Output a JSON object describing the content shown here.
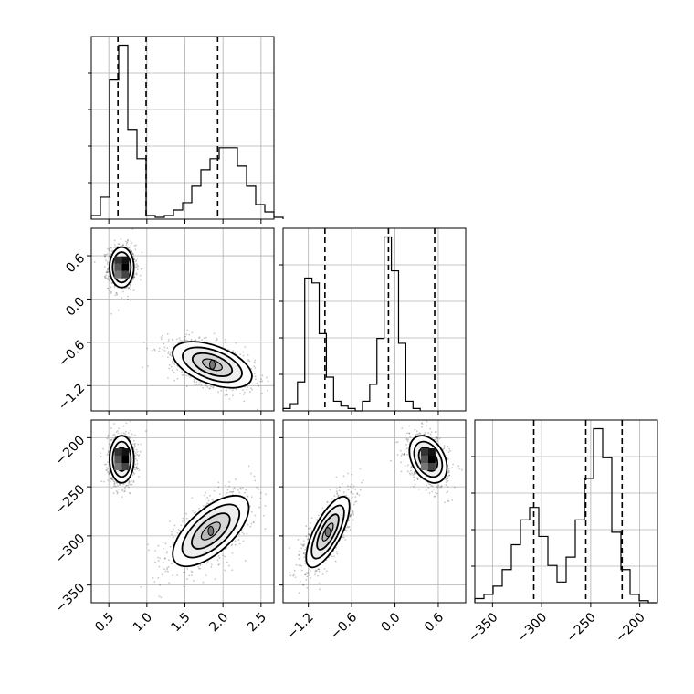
{
  "chart_data": {
    "type": "corner",
    "parameters": [
      {
        "tick_labels": [
          "0.5",
          "1.0",
          "1.5",
          "2.0",
          "2.5"
        ],
        "ticks": [
          0.5,
          1.0,
          1.5,
          2.0,
          2.5
        ],
        "range": [
          0.27,
          2.67
        ],
        "quantile_lines": [
          0.62,
          0.99,
          1.93
        ]
      },
      {
        "tick_labels": [
          "−1.2",
          "−0.6",
          "0.0",
          "0.6"
        ],
        "ticks": [
          -1.2,
          -0.6,
          0.0,
          0.6
        ],
        "range": [
          -1.55,
          0.98
        ],
        "quantile_lines": [
          -0.97,
          -0.09,
          0.55
        ]
      },
      {
        "tick_labels": [
          "−350",
          "−300",
          "−250",
          "−200"
        ],
        "ticks": [
          -350,
          -300,
          -250,
          -200
        ],
        "range": [
          -368,
          -182
        ],
        "quantile_lines": [
          -308,
          -255,
          -218
        ]
      }
    ],
    "histograms": [
      {
        "parameter": 0,
        "bin_edges_start": 0.27,
        "bin_width": 0.12,
        "counts": [
          2,
          12,
          76,
          95,
          49,
          33,
          2,
          1,
          2,
          5,
          9,
          18,
          27,
          33,
          39,
          39,
          29,
          18,
          8,
          4,
          1
        ]
      },
      {
        "parameter": 1,
        "bin_edges_start": -1.55,
        "bin_width": 0.1,
        "counts": [
          1,
          3,
          12,
          55,
          53,
          32,
          14,
          4,
          2,
          1,
          0,
          4,
          11,
          30,
          72,
          58,
          28,
          4,
          1
        ]
      },
      {
        "parameter": 2,
        "bin_edges_start": -368,
        "bin_width": 9.3,
        "counts": [
          1,
          2,
          4,
          8,
          14,
          20,
          23,
          16,
          9,
          5,
          11,
          20,
          30,
          42,
          35,
          17,
          8,
          2,
          0.5,
          0
        ]
      }
    ],
    "scatter_modes": [
      {
        "panel": "x0-x1",
        "modes": [
          {
            "center": [
              0.67,
              0.44
            ],
            "sigma": [
              0.08,
              0.14
            ],
            "rho": 0.0
          },
          {
            "center": [
              1.86,
              -0.91
            ],
            "sigma": [
              0.26,
              0.16
            ],
            "rho": -0.5
          }
        ]
      },
      {
        "panel": "x0-x2",
        "modes": [
          {
            "center": [
              0.67,
              -222
            ],
            "sigma": [
              0.08,
              12
            ],
            "rho": 0.0
          },
          {
            "center": [
              1.84,
              -295
            ],
            "sigma": [
              0.25,
              18
            ],
            "rho": 0.65
          }
        ]
      },
      {
        "panel": "x1-x2",
        "modes": [
          {
            "center": [
              0.46,
              -222
            ],
            "sigma": [
              0.13,
              12
            ],
            "rho": -0.35
          },
          {
            "center": [
              -0.93,
              -296
            ],
            "sigma": [
              0.15,
              18
            ],
            "rho": 0.72
          }
        ]
      }
    ],
    "grid": true,
    "legend": "none"
  }
}
